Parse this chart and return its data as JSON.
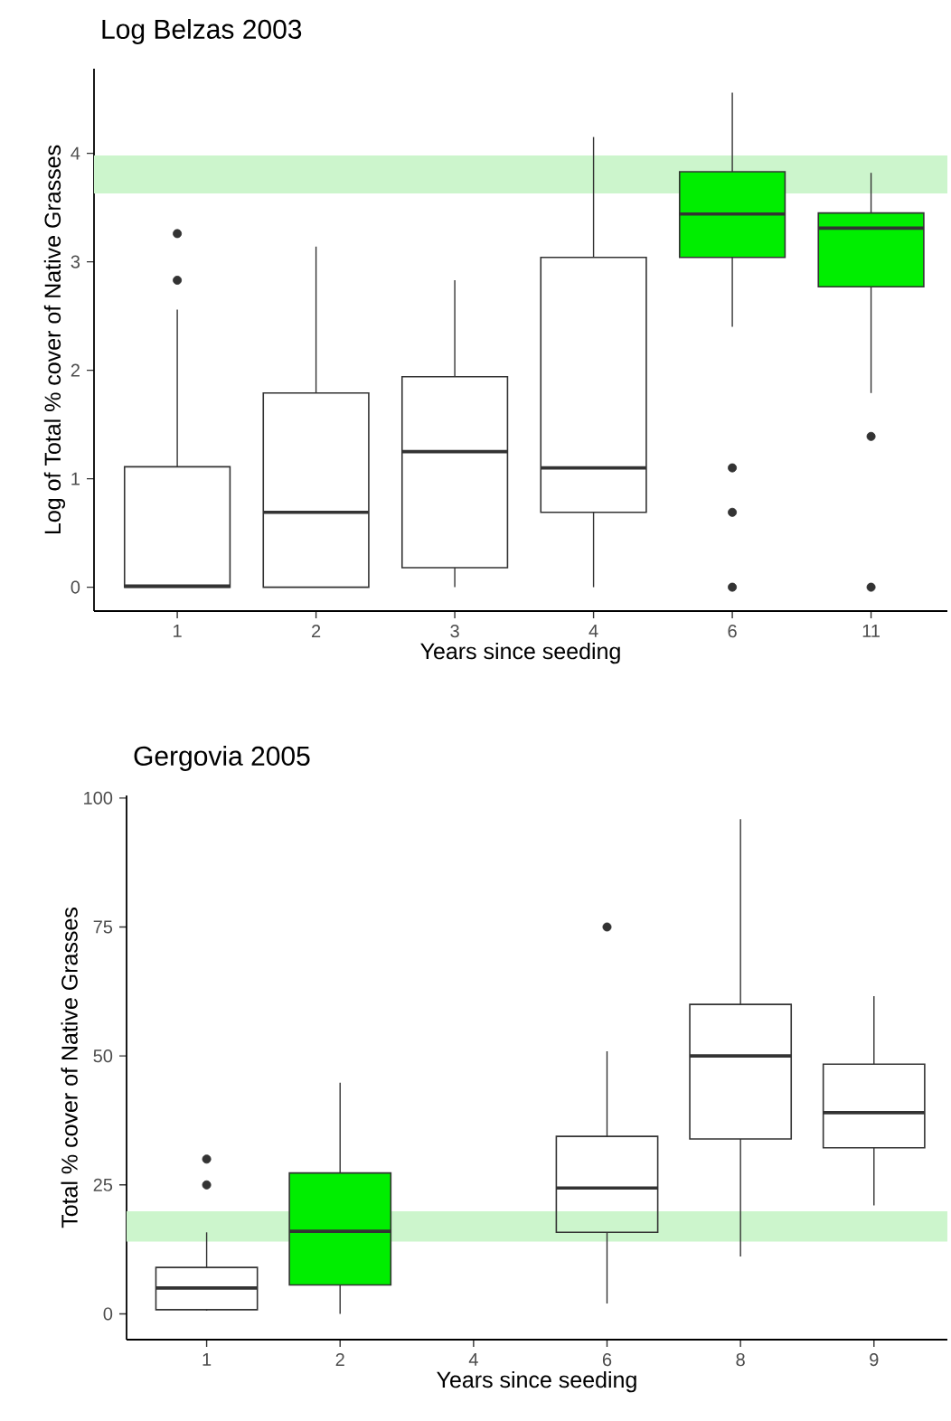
{
  "chart_data": [
    {
      "type": "box",
      "title": "Log Belzas 2003",
      "xlabel": "Years since seeding",
      "ylabel": "Log of Total % cover of Native Grasses",
      "categories": [
        "1",
        "2",
        "3",
        "4",
        "6",
        "11"
      ],
      "colors": [
        null,
        null,
        null,
        null,
        "#00ee00",
        "#00ee00"
      ],
      "boxes": [
        {
          "low": 0,
          "q1": 0,
          "median": 0.01,
          "q3": 1.11,
          "high": 2.56,
          "outliers": [
            3.26,
            2.83
          ]
        },
        {
          "low": 0,
          "q1": 0,
          "median": 0.69,
          "q3": 1.79,
          "high": 3.14
        },
        {
          "low": 0,
          "q1": 0.18,
          "median": 1.25,
          "q3": 1.94,
          "high": 2.83
        },
        {
          "low": 0,
          "q1": 0.69,
          "median": 1.1,
          "q3": 3.04,
          "high": 4.15
        },
        {
          "low": 2.4,
          "q1": 3.04,
          "median": 3.44,
          "q3": 3.83,
          "high": 4.56,
          "outliers": [
            1.1,
            0.69,
            0
          ]
        },
        {
          "low": 1.79,
          "q1": 2.77,
          "median": 3.31,
          "q3": 3.45,
          "high": 3.82,
          "outliers": [
            1.39,
            0
          ]
        }
      ],
      "ylim": [
        -0.22,
        4.78
      ],
      "yticks": [
        0,
        1,
        2,
        3,
        4
      ],
      "bands": [
        {
          "axis": "y",
          "from": 3.63,
          "to": 3.98,
          "color": "#ccf5cc"
        }
      ]
    },
    {
      "type": "box",
      "title": "Gergovia 2005",
      "xlabel": "Years since seeding",
      "ylabel": "Total % cover of Native Grasses",
      "categories": [
        "1",
        "2",
        "4",
        "6",
        "8",
        "9"
      ],
      "colors": [
        null,
        "#00ee00",
        null,
        null,
        null,
        null
      ],
      "boxes": [
        {
          "low": 0.6,
          "q1": 0.8,
          "median": 5,
          "q3": 9,
          "high": 15.8,
          "outliers": [
            30,
            25
          ]
        },
        {
          "low": 0,
          "q1": 5.6,
          "median": 16,
          "q3": 27.3,
          "high": 44.8
        },
        null,
        {
          "low": 2,
          "q1": 15.8,
          "median": 24.4,
          "q3": 34.4,
          "high": 50.9,
          "outliers": [
            75
          ]
        },
        {
          "low": 11.1,
          "q1": 33.9,
          "median": 50,
          "q3": 60,
          "high": 95.9
        },
        {
          "low": 21,
          "q1": 32.2,
          "median": 39,
          "q3": 48.4,
          "high": 61.6
        }
      ],
      "ylim": [
        -5,
        100.5
      ],
      "yticks": [
        0,
        25,
        50,
        75,
        100
      ],
      "bands": [
        {
          "axis": "y",
          "from": 14,
          "to": 19.9,
          "color": "#ccf5cc"
        }
      ]
    }
  ]
}
